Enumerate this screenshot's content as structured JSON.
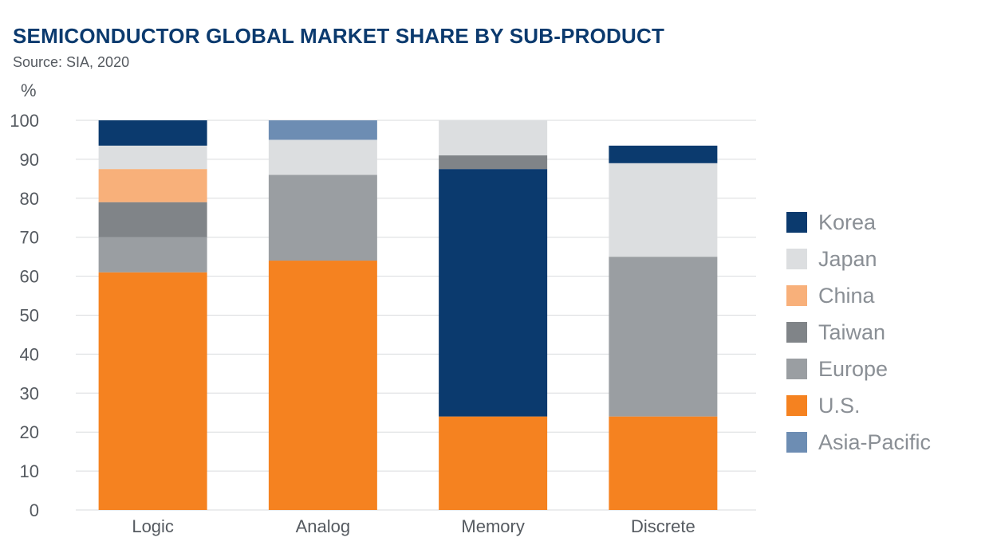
{
  "header": {
    "title": "SEMICONDUCTOR GLOBAL MARKET SHARE BY SUB-PRODUCT",
    "source": "Source: SIA, 2020"
  },
  "chart_data": {
    "type": "bar",
    "stacked": true,
    "title": "SEMICONDUCTOR GLOBAL MARKET SHARE BY SUB-PRODUCT",
    "subtitle": "Source: SIA, 2020",
    "ylabel": "%",
    "xlabel": "",
    "ylim": [
      0,
      100
    ],
    "yticks": [
      0,
      10,
      20,
      30,
      40,
      50,
      60,
      70,
      80,
      90,
      100
    ],
    "grid": true,
    "legend_position": "right",
    "categories": [
      "Logic",
      "Analog",
      "Memory",
      "Discrete"
    ],
    "series": [
      {
        "name": "U.S.",
        "color": "#f58220",
        "values": [
          61,
          64,
          24,
          24
        ]
      },
      {
        "name": "Europe",
        "color": "#9a9ea2",
        "values": [
          9,
          22,
          0,
          41
        ]
      },
      {
        "name": "Taiwan",
        "color": "#808488",
        "values": [
          9,
          0,
          3.5,
          0
        ]
      },
      {
        "name": "China",
        "color": "#f8b07a",
        "values": [
          8.5,
          0,
          0,
          0
        ]
      },
      {
        "name": "Japan",
        "color": "#dcdee0",
        "values": [
          6,
          9,
          9,
          24
        ]
      },
      {
        "name": "Korea",
        "color": "#0b3a6e",
        "values": [
          6.5,
          0,
          63.5,
          4.5
        ]
      },
      {
        "name": "Asia-Pacific",
        "color": "#6d8db3",
        "values": [
          0,
          5,
          0,
          0
        ]
      }
    ],
    "stack_order": [
      [
        "U.S.",
        "Europe",
        "Taiwan",
        "China",
        "Japan",
        "Korea"
      ],
      [
        "U.S.",
        "Europe",
        "Japan",
        "Asia-Pacific"
      ],
      [
        "U.S.",
        "Korea",
        "Taiwan",
        "Japan"
      ],
      [
        "U.S.",
        "Europe",
        "Japan",
        "Korea",
        "China"
      ]
    ],
    "legend_order": [
      "Korea",
      "Japan",
      "China",
      "Taiwan",
      "Europe",
      "U.S.",
      "Asia-Pacific"
    ]
  }
}
